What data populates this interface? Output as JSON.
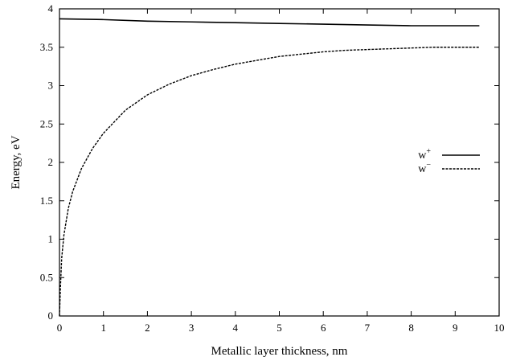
{
  "chart_data": {
    "type": "line",
    "title": "",
    "xlabel": "Metallic layer thickness, nm",
    "ylabel": "Energy, eV",
    "xlim": [
      0,
      10
    ],
    "ylim": [
      0,
      4
    ],
    "xticks": [
      "0",
      "1",
      "2",
      "3",
      "4",
      "5",
      "6",
      "7",
      "8",
      "9",
      "10"
    ],
    "yticks": [
      "0",
      "0.5",
      "1",
      "1.5",
      "2",
      "2.5",
      "3",
      "3.5",
      "4"
    ],
    "grid": false,
    "legend_position": "right",
    "series": [
      {
        "name": "w+",
        "base": "w",
        "sup": "+",
        "style": "solid",
        "color": "#000000",
        "x": [
          0,
          1,
          2,
          3,
          4,
          5,
          6,
          7,
          8,
          9,
          9.55
        ],
        "y": [
          3.87,
          3.86,
          3.84,
          3.83,
          3.82,
          3.81,
          3.8,
          3.79,
          3.78,
          3.78,
          3.78
        ]
      },
      {
        "name": "w−",
        "base": "w",
        "sup": "−",
        "style": "dashed",
        "color": "#000000",
        "x": [
          0,
          0.02,
          0.05,
          0.1,
          0.2,
          0.3,
          0.5,
          0.75,
          1.0,
          1.5,
          2.0,
          2.5,
          3.0,
          3.5,
          4.0,
          4.5,
          5.0,
          5.5,
          6.0,
          6.5,
          7.0,
          7.5,
          8.0,
          8.5,
          9.0,
          9.55
        ],
        "y": [
          0,
          0.35,
          0.75,
          1.05,
          1.4,
          1.62,
          1.92,
          2.18,
          2.38,
          2.68,
          2.88,
          3.02,
          3.13,
          3.21,
          3.28,
          3.33,
          3.38,
          3.41,
          3.44,
          3.46,
          3.47,
          3.48,
          3.49,
          3.5,
          3.5,
          3.5
        ]
      }
    ]
  }
}
